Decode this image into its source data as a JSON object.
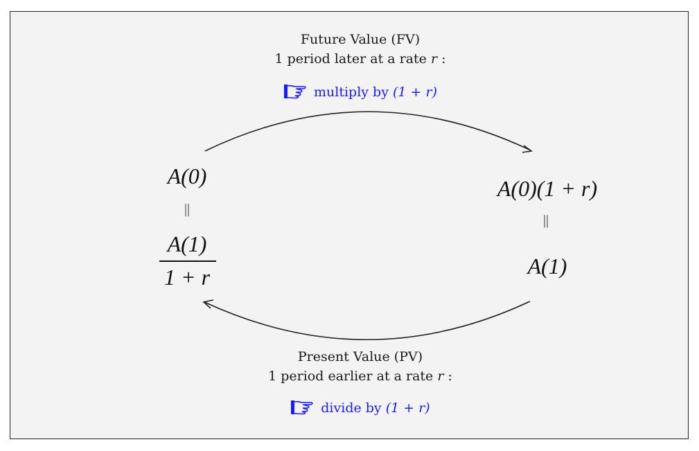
{
  "future": {
    "title": "Future Value (FV)",
    "line_prefix": "1 period later at a rate",
    "line_var": "r",
    "line_suffix": ":",
    "action_prefix": "multiply by",
    "action_expr": "(1 + r)",
    "icon": "pointing-hand-icon",
    "action_color": "#1a1aff"
  },
  "present": {
    "title": "Present Value (PV)",
    "line_prefix": "1 period earlier at a rate",
    "line_var": "r",
    "line_suffix": ":",
    "action_prefix": "divide by",
    "action_expr": "(1 + r)",
    "icon": "pointing-hand-icon",
    "action_color": "#1a1aff"
  },
  "left_node": {
    "top": "A(0)",
    "equals": "||",
    "numerator": "A(1)",
    "denominator": "1 + r"
  },
  "right_node": {
    "top": "A(0)(1 + r)",
    "equals": "||",
    "bottom": "A(1)"
  }
}
